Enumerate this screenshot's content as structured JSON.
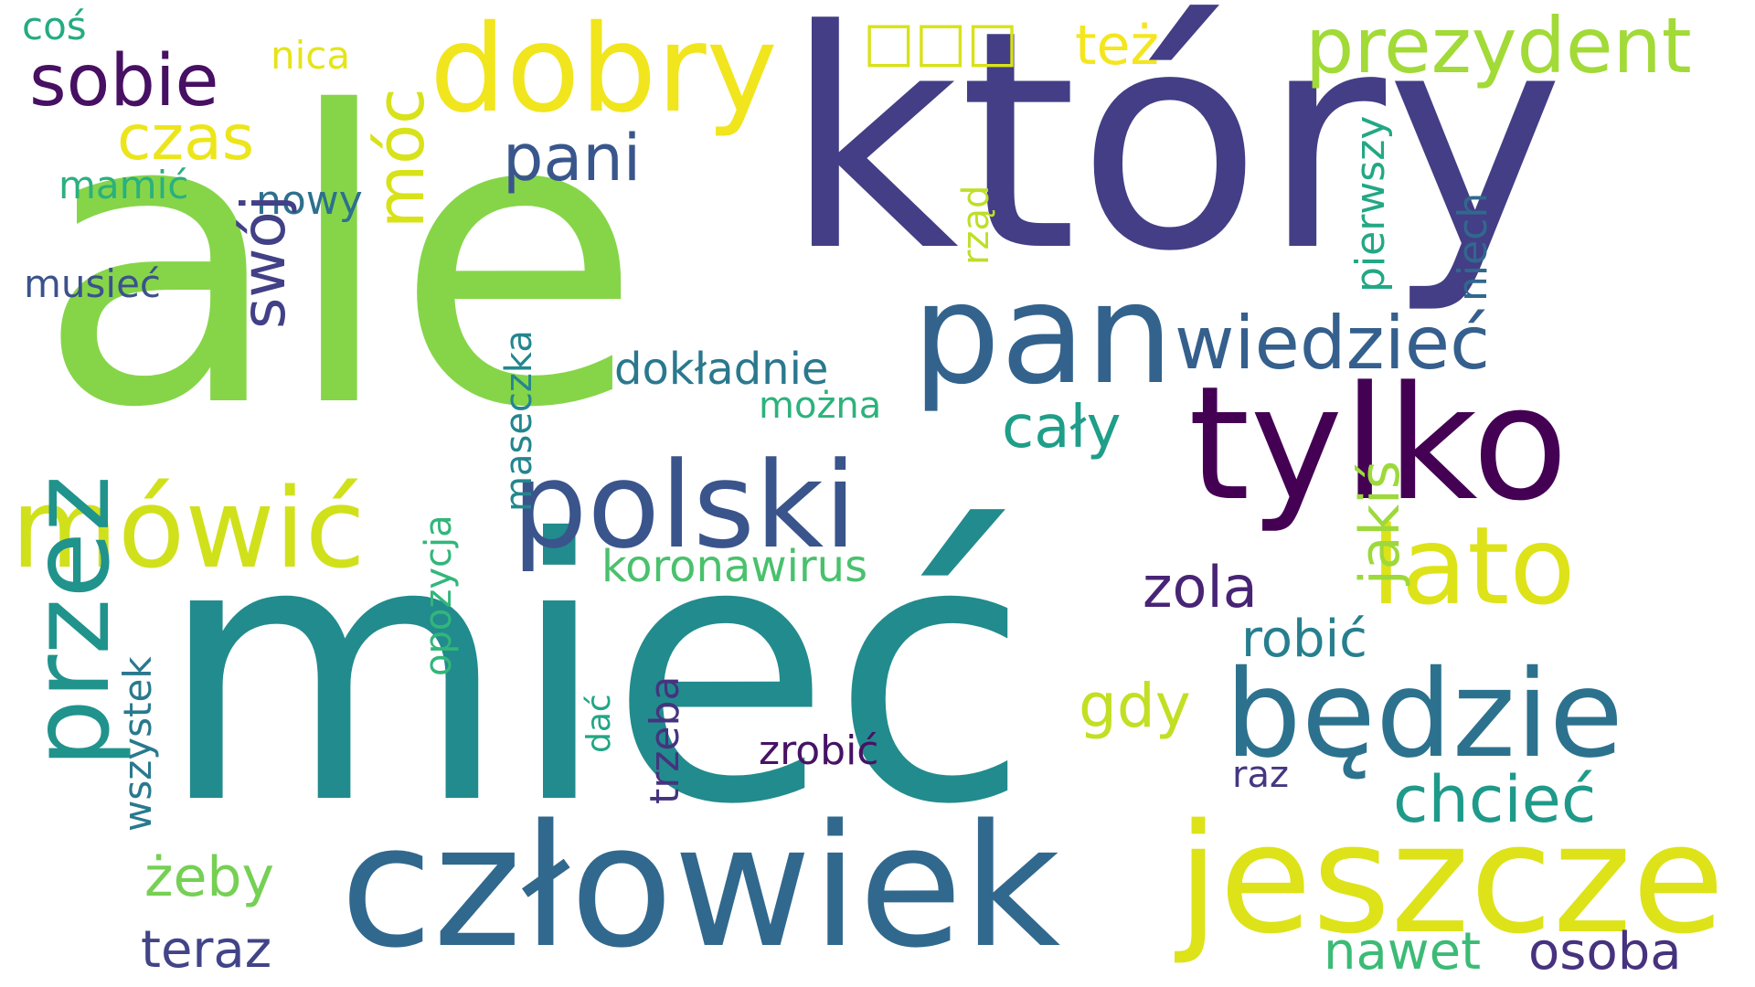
{
  "colors": {
    "background": "#ffffff",
    "palette": [
      "#440154",
      "#482878",
      "#3e4a89",
      "#31688e",
      "#26828e",
      "#1f9e89",
      "#35b779",
      "#6ece58",
      "#b5de2b",
      "#fde725"
    ]
  },
  "words": [
    {
      "id": "ktory",
      "text": "który",
      "color": "#433e85"
    },
    {
      "id": "ale",
      "text": "ale",
      "color": "#86d549"
    },
    {
      "id": "miec",
      "text": "mieć",
      "color": "#228b8d"
    },
    {
      "id": "czlowiek",
      "text": "człowiek",
      "color": "#31688e"
    },
    {
      "id": "jeszcze",
      "text": "jeszcze",
      "color": "#dde318"
    },
    {
      "id": "tylko",
      "text": "tylko",
      "color": "#440154"
    },
    {
      "id": "pan",
      "text": "pan",
      "color": "#33638d"
    },
    {
      "id": "polski",
      "text": "polski",
      "color": "#3a548c"
    },
    {
      "id": "mowic",
      "text": "mówić",
      "color": "#d0e11c"
    },
    {
      "id": "bedzie",
      "text": "będzie",
      "color": "#2c728e"
    },
    {
      "id": "dobry",
      "text": "dobry",
      "color": "#f1e51d"
    },
    {
      "id": "lato",
      "text": "lato",
      "color": "#dde318"
    },
    {
      "id": "przez",
      "text": "przez",
      "color": "#20938c"
    },
    {
      "id": "prezydent",
      "text": "prezydent",
      "color": "#a2da37"
    },
    {
      "id": "wiedziec",
      "text": "wiedzieć",
      "color": "#355f8d"
    },
    {
      "id": "sobie",
      "text": "sobie",
      "color": "#471063"
    },
    {
      "id": "pani",
      "text": "pani",
      "color": "#39568c"
    },
    {
      "id": "czas",
      "text": "czas",
      "color": "#ece51b"
    },
    {
      "id": "chciec",
      "text": "chcieć",
      "color": "#1f9a8a"
    },
    {
      "id": "caly",
      "text": "cały",
      "color": "#1f9e89"
    },
    {
      "id": "zola",
      "text": "zola",
      "color": "#482475"
    },
    {
      "id": "robic",
      "text": "robić",
      "color": "#277f8e"
    },
    {
      "id": "gdy",
      "text": "gdy",
      "color": "#c2df23"
    },
    {
      "id": "zeby",
      "text": "żeby",
      "color": "#75d054"
    },
    {
      "id": "teraz",
      "text": "teraz",
      "color": "#414487"
    },
    {
      "id": "nawet",
      "text": "nawet",
      "color": "#3bbb75"
    },
    {
      "id": "osoba",
      "text": "osoba",
      "color": "#46327e"
    },
    {
      "id": "moc",
      "text": "móc",
      "color": "#d8e219"
    },
    {
      "id": "swoj",
      "text": "swój",
      "color": "#424086"
    },
    {
      "id": "jakis",
      "text": "jakiś",
      "color": "#9dd93b"
    },
    {
      "id": "tez",
      "text": "też",
      "color": "#f4e61e"
    },
    {
      "id": "koronawirus",
      "text": "koronawirus",
      "color": "#4ac16d"
    },
    {
      "id": "dokladnie",
      "text": "dokładnie",
      "color": "#2a788e"
    },
    {
      "id": "zrobic",
      "text": "zrobić",
      "color": "#471365"
    },
    {
      "id": "nowy",
      "text": "nowy",
      "color": "#2d708e"
    },
    {
      "id": "mamic",
      "text": "mamić",
      "color": "#2ab07f"
    },
    {
      "id": "musiec",
      "text": "musieć",
      "color": "#3b528b"
    },
    {
      "id": "nica",
      "text": "nica",
      "color": "#e5e419"
    },
    {
      "id": "cos",
      "text": "coś",
      "color": "#25ab82"
    },
    {
      "id": "mozna",
      "text": "można",
      "color": "#2db27d"
    },
    {
      "id": "raz",
      "text": "raz",
      "color": "#453781"
    },
    {
      "id": "bracket_glyph",
      "text": "□□□",
      "color": "#d8e219"
    },
    {
      "id": "pierwszy",
      "text": "pierwszy",
      "color": "#22a884"
    },
    {
      "id": "niech",
      "text": "niech",
      "color": "#31688e"
    },
    {
      "id": "rzad",
      "text": "rząd",
      "color": "#bddf26"
    },
    {
      "id": "maseczka",
      "text": "maseczka",
      "color": "#24868e"
    },
    {
      "id": "opozycja",
      "text": "opozycja",
      "color": "#32b67a"
    },
    {
      "id": "wszystek",
      "text": "wszystek",
      "color": "#29798e"
    },
    {
      "id": "trzeba",
      "text": "trzeba",
      "color": "#46337f"
    },
    {
      "id": "dac",
      "text": "dać",
      "color": "#21a685"
    }
  ]
}
